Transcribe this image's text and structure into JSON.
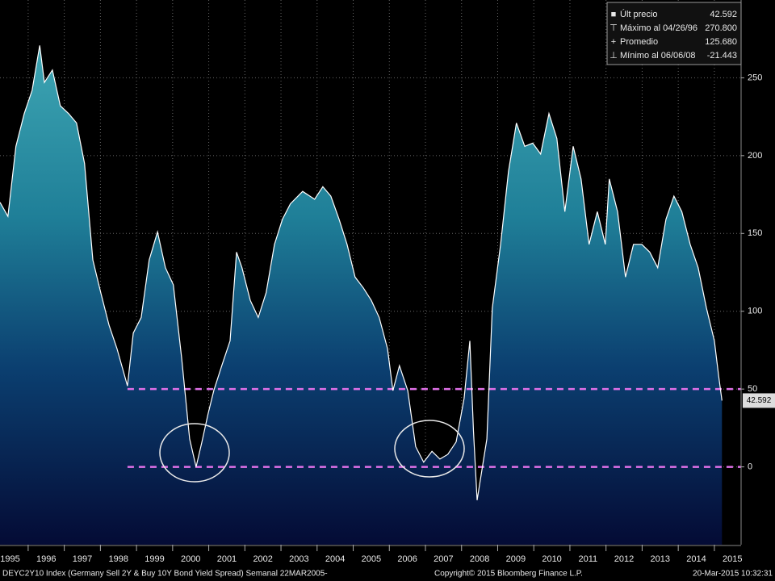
{
  "chart_data": {
    "type": "area",
    "x": [
      1995.22,
      1995.44,
      1995.66,
      1995.89,
      1996.11,
      1996.32,
      1996.45,
      1996.67,
      1996.89,
      1997.12,
      1997.34,
      1997.56,
      1997.79,
      1998.01,
      1998.24,
      1998.46,
      1998.75,
      1998.91,
      1999.13,
      1999.35,
      1999.58,
      1999.8,
      2000.02,
      2000.25,
      2000.47,
      2000.65,
      2000.81,
      2000.98,
      2001.14,
      2001.36,
      2001.59,
      2001.77,
      2001.92,
      2002.15,
      2002.37,
      2002.59,
      2002.82,
      2003.04,
      2003.26,
      2003.6,
      2003.93,
      2004.16,
      2004.38,
      2004.61,
      2004.83,
      2005.05,
      2005.28,
      2005.5,
      2005.72,
      2005.95,
      2006.1,
      2006.28,
      2006.51,
      2006.73,
      2006.95,
      2007.18,
      2007.4,
      2007.62,
      2007.85,
      2008.07,
      2008.23,
      2008.33,
      2008.43,
      2008.7,
      2008.85,
      2009.08,
      2009.3,
      2009.52,
      2009.75,
      2009.97,
      2010.19,
      2010.42,
      2010.64,
      2010.86,
      2011.09,
      2011.31,
      2011.53,
      2011.76,
      2011.98,
      2012.09,
      2012.32,
      2012.54,
      2012.76,
      2012.99,
      2013.21,
      2013.43,
      2013.66,
      2013.88,
      2014.1,
      2014.33,
      2014.55,
      2014.78,
      2015.0,
      2015.12,
      2015.21
    ],
    "values": [
      170,
      161,
      206,
      227,
      242,
      270.8,
      247,
      255,
      232,
      227,
      221,
      195,
      133,
      112,
      91,
      76,
      52,
      86,
      96,
      133,
      151,
      128,
      117,
      70,
      18,
      0,
      16,
      34,
      49,
      65,
      81,
      138,
      128,
      107,
      96,
      112,
      143,
      159,
      169,
      177,
      172,
      180,
      174,
      159,
      143,
      122,
      115,
      107,
      96,
      76,
      49,
      65,
      49,
      13,
      3,
      10,
      5,
      8,
      16,
      44,
      81,
      23,
      -21.443,
      18,
      102,
      143,
      190,
      221,
      206,
      208,
      201,
      227,
      211,
      164,
      206,
      185,
      143,
      164,
      143,
      185,
      164,
      122,
      143,
      143,
      138,
      128,
      159,
      174,
      164,
      143,
      128,
      102,
      81,
      58,
      42.592
    ],
    "line_color": "#ffffff",
    "xlim": [
      1995.22,
      2015.74
    ],
    "xticks": [
      1995,
      1996,
      1997,
      1998,
      1999,
      2000,
      2001,
      2002,
      2003,
      2004,
      2005,
      2006,
      2007,
      2008,
      2009,
      2010,
      2011,
      2012,
      2013,
      2014,
      2015
    ],
    "ylim": [
      -50,
      300
    ],
    "yticks": [
      0,
      50,
      100,
      150,
      200,
      250
    ],
    "grid": true,
    "reference_lines": [
      {
        "value": 50,
        "start": 1998.75,
        "color": "#e070e8"
      },
      {
        "value": 0,
        "start": 1998.75,
        "color": "#e070e8"
      }
    ],
    "legend_items": [
      {
        "label": "Últ precio",
        "value": 42.592
      },
      {
        "label": "Máximo al 04/26/96",
        "value": 270.8,
        "value_label": "270.800"
      },
      {
        "label": "Promedio",
        "value": 125.68,
        "value_label": "125.680"
      },
      {
        "label": "Mínimo al 06/06/08",
        "value": -21.443
      }
    ],
    "footer": {
      "left": "DEYC2Y10 Index (Germany Sell 2Y & Buy 10Y Bond Yield Spread)  Semanal 22MAR2005-",
      "center": "Copyright© 2015 Bloomberg Finance L.P.",
      "right": "20-Mar-2015 10:32:31"
    }
  }
}
